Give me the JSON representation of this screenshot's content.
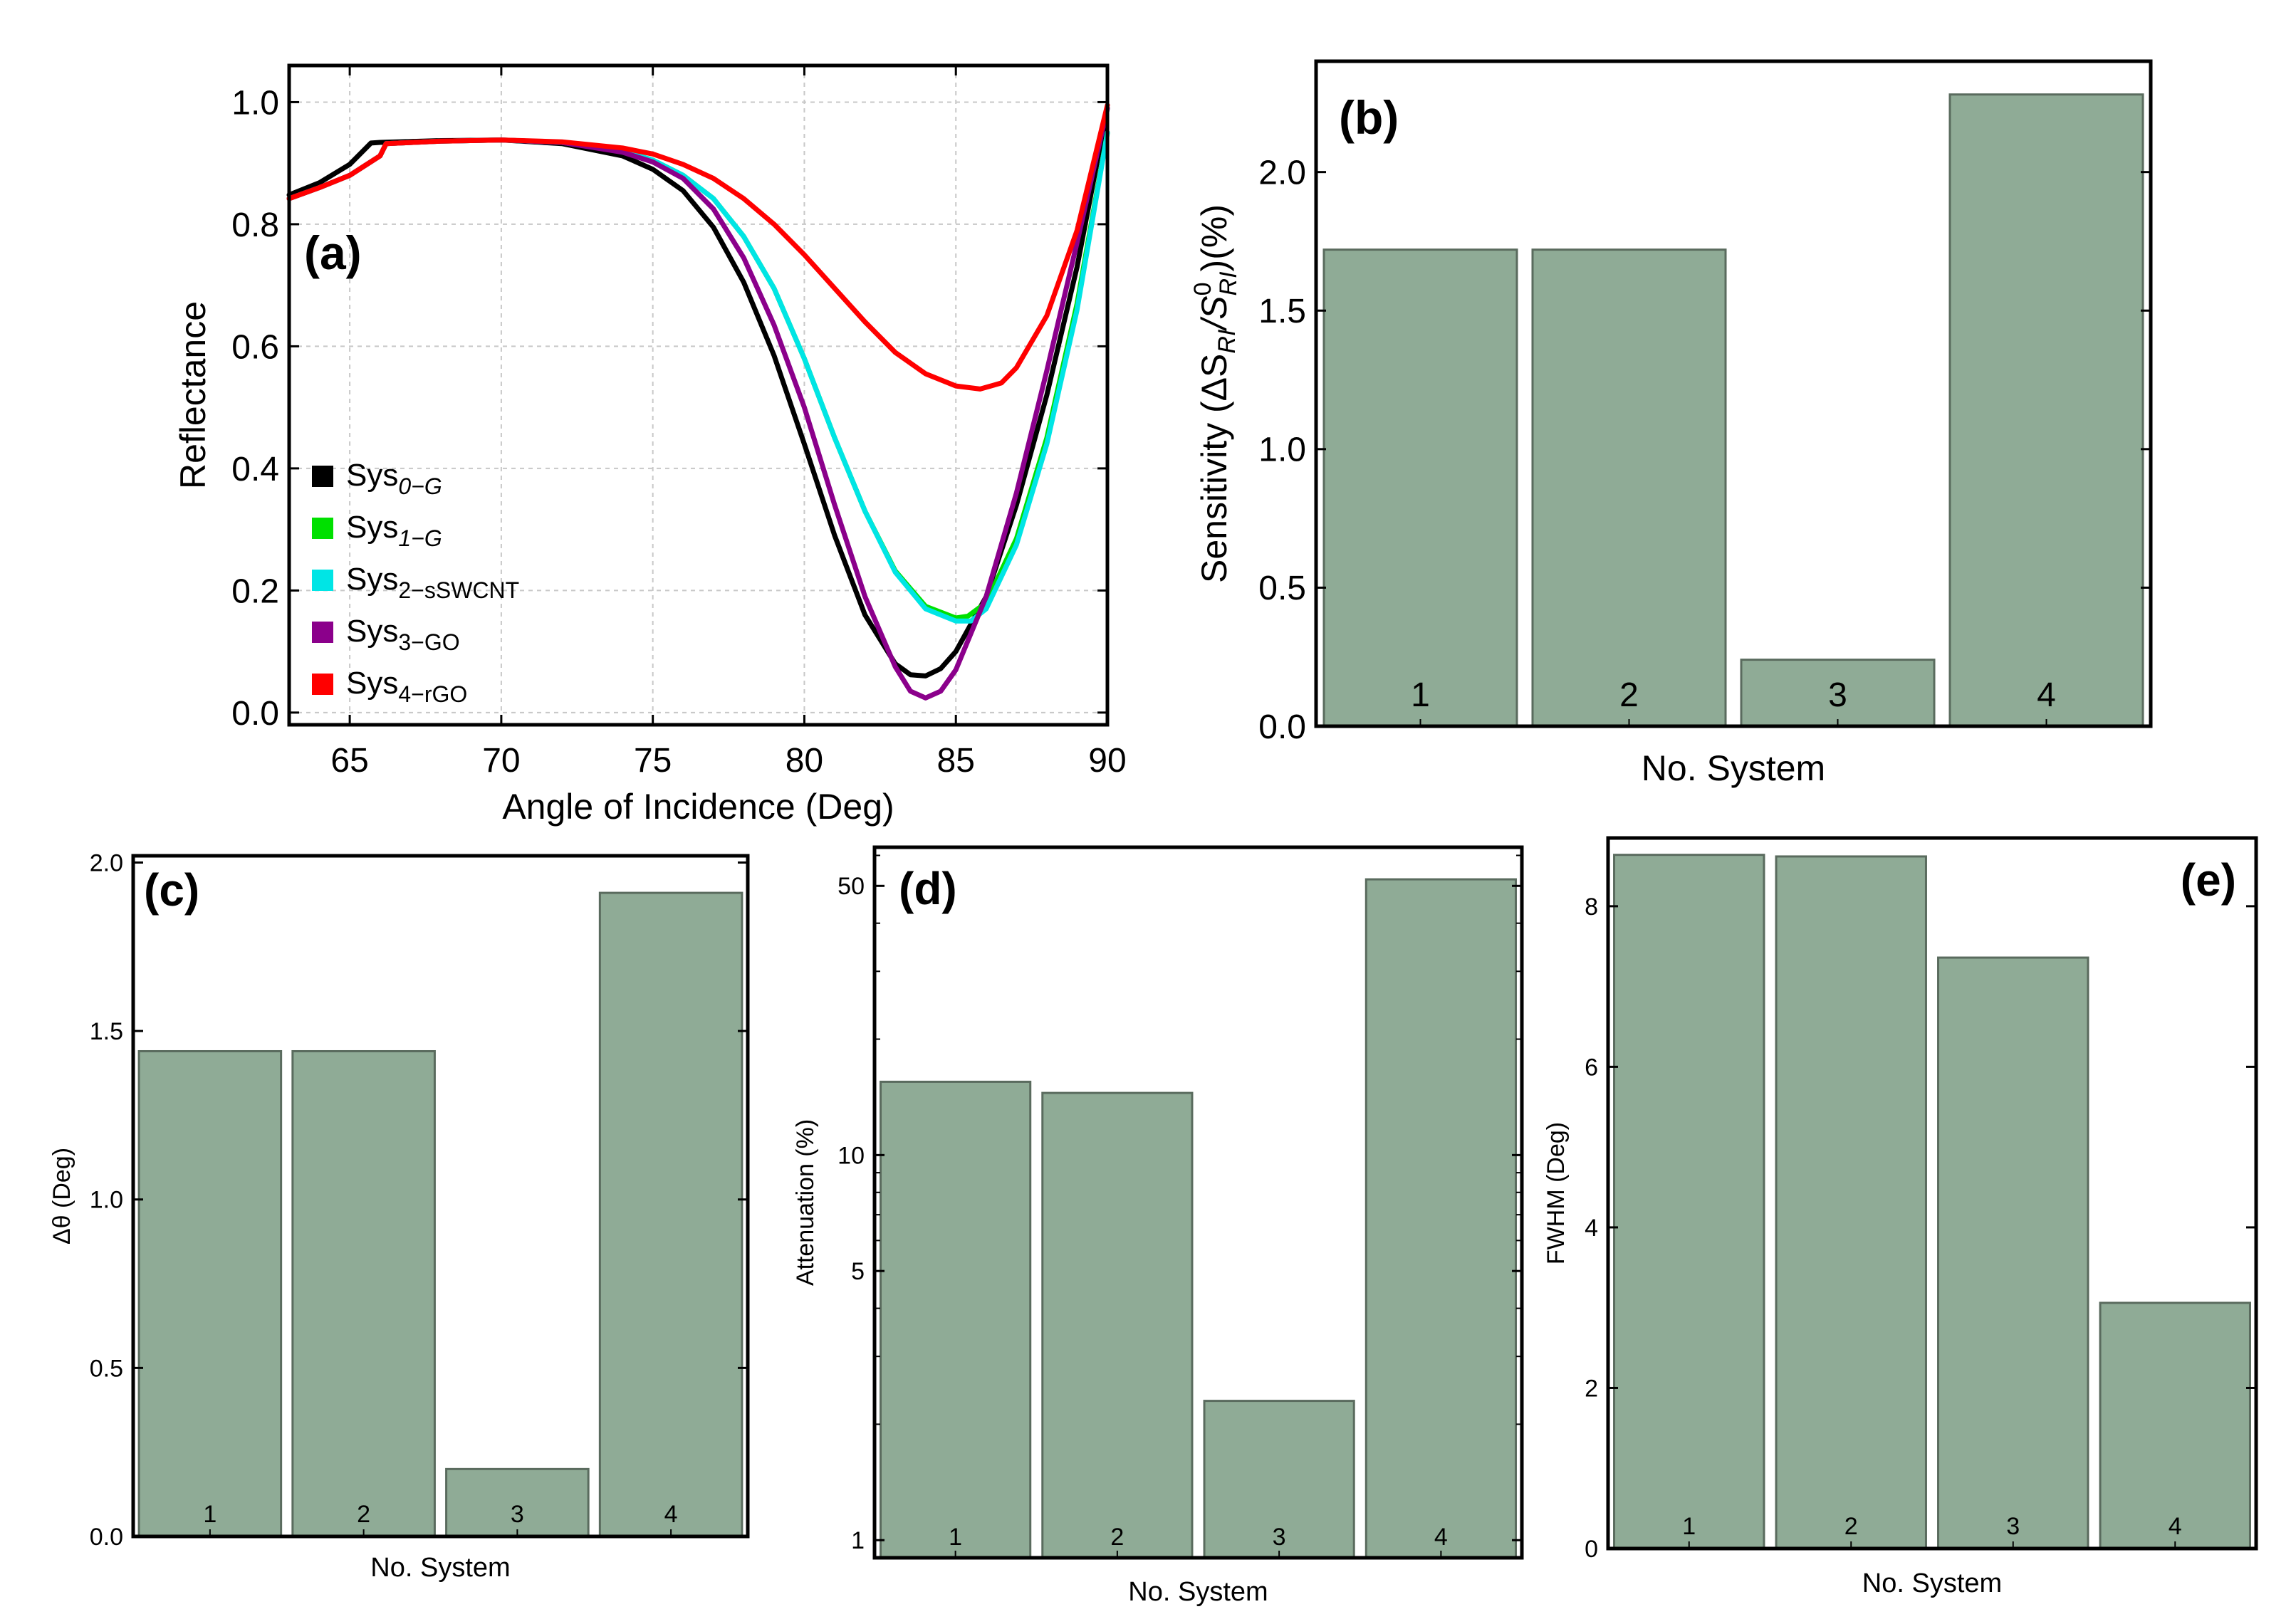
{
  "colors": {
    "bar_fill": "#8fab96",
    "bar_stroke": "#5a6b5e",
    "frame": "#000000",
    "grid": "#c8c8c8"
  },
  "chart_data": [
    {
      "id": "a",
      "type": "line",
      "panel_label": "(a)",
      "xlabel": "Angle of Incidence (Deg)",
      "ylabel": "Reflectance",
      "xlim": [
        63,
        90
      ],
      "ylim": [
        -0.02,
        1.06
      ],
      "xticks": [
        65,
        70,
        75,
        80,
        85,
        90
      ],
      "yticks": [
        0.0,
        0.2,
        0.4,
        0.6,
        0.8,
        1.0
      ],
      "ytick_labels": [
        "0.0",
        "0.2",
        "0.4",
        "0.6",
        "0.8",
        "1.0"
      ],
      "grid": true,
      "legend_position": "bottom-left",
      "series": [
        {
          "name": "Sys",
          "sub": "0−G",
          "sub_italic": true,
          "color": "#000000",
          "x": [
            63,
            64,
            65,
            65.7,
            66,
            68,
            70,
            72,
            74,
            75,
            76,
            77,
            78,
            79,
            80,
            81,
            82,
            83,
            83.5,
            84,
            84.5,
            85,
            86,
            87,
            88,
            89,
            90
          ],
          "y": [
            0.848,
            0.868,
            0.898,
            0.933,
            0.934,
            0.937,
            0.938,
            0.932,
            0.912,
            0.89,
            0.855,
            0.795,
            0.705,
            0.585,
            0.44,
            0.29,
            0.16,
            0.08,
            0.062,
            0.06,
            0.072,
            0.1,
            0.19,
            0.34,
            0.52,
            0.73,
            0.99
          ]
        },
        {
          "name": "Sys",
          "sub": "1−G",
          "sub_italic": true,
          "color": "#00e000",
          "x": [
            63,
            64,
            65,
            66,
            66.2,
            68,
            70,
            72,
            74,
            75,
            76,
            77,
            78,
            79,
            80,
            81,
            82,
            83,
            84,
            85,
            85.4,
            86,
            87,
            88,
            89,
            90
          ],
          "y": [
            0.842,
            0.86,
            0.88,
            0.912,
            0.932,
            0.936,
            0.938,
            0.934,
            0.92,
            0.905,
            0.88,
            0.842,
            0.78,
            0.695,
            0.58,
            0.45,
            0.33,
            0.232,
            0.174,
            0.155,
            0.158,
            0.18,
            0.285,
            0.45,
            0.67,
            0.95
          ]
        },
        {
          "name": "Sys",
          "sub": "2−sSWCNT",
          "sub_italic": false,
          "color": "#00e5e5",
          "x": [
            63,
            64,
            65,
            66,
            66.2,
            68,
            70,
            72,
            74,
            75,
            76,
            77,
            78,
            79,
            80,
            81,
            82,
            83,
            84,
            85,
            85.5,
            86,
            87,
            88,
            89,
            90
          ],
          "y": [
            0.842,
            0.86,
            0.88,
            0.912,
            0.932,
            0.936,
            0.938,
            0.934,
            0.92,
            0.905,
            0.88,
            0.842,
            0.78,
            0.695,
            0.58,
            0.45,
            0.33,
            0.23,
            0.17,
            0.15,
            0.15,
            0.17,
            0.275,
            0.44,
            0.66,
            0.95
          ]
        },
        {
          "name": "Sys",
          "sub": "3−GO",
          "sub_italic": false,
          "color": "#8b008b",
          "x": [
            63,
            64,
            65,
            66,
            66.2,
            68,
            70,
            72,
            74,
            75,
            76,
            77,
            78,
            79,
            80,
            81,
            82,
            83,
            83.5,
            84,
            84.5,
            85,
            86,
            87,
            88,
            89,
            90
          ],
          "y": [
            0.842,
            0.86,
            0.88,
            0.912,
            0.932,
            0.936,
            0.938,
            0.934,
            0.918,
            0.902,
            0.875,
            0.825,
            0.745,
            0.635,
            0.5,
            0.34,
            0.19,
            0.075,
            0.035,
            0.024,
            0.035,
            0.07,
            0.19,
            0.36,
            0.56,
            0.77,
            0.99
          ]
        },
        {
          "name": "Sys",
          "sub": "4−rGO",
          "sub_italic": false,
          "color": "#ff0000",
          "x": [
            63,
            64,
            65,
            66,
            66.2,
            68,
            70,
            72,
            74,
            75,
            76,
            77,
            78,
            79,
            80,
            81,
            82,
            83,
            84,
            85,
            85.8,
            86.5,
            87,
            88,
            89,
            90
          ],
          "y": [
            0.842,
            0.86,
            0.88,
            0.912,
            0.932,
            0.936,
            0.938,
            0.935,
            0.925,
            0.915,
            0.898,
            0.875,
            0.842,
            0.8,
            0.75,
            0.695,
            0.64,
            0.59,
            0.555,
            0.535,
            0.53,
            0.54,
            0.565,
            0.65,
            0.79,
            0.995
          ]
        }
      ]
    },
    {
      "id": "b",
      "type": "bar",
      "panel_label": "(b)",
      "xlabel": "No. System",
      "ylabel_main": "Sensitivity (ΔS",
      "ylabel_sub1": "RI",
      "ylabel_mid": "/S",
      "ylabel_sup": "0",
      "ylabel_sub2": "RI",
      "ylabel_tail": ")(%)",
      "categories": [
        "1",
        "2",
        "3",
        "4"
      ],
      "values": [
        1.72,
        1.72,
        0.24,
        2.28
      ],
      "ylim": [
        0,
        2.4
      ],
      "yticks": [
        0.0,
        0.5,
        1.0,
        1.5,
        2.0
      ],
      "ytick_labels": [
        "0.0",
        "0.5",
        "1.0",
        "1.5",
        "2.0"
      ],
      "log_scale": false
    },
    {
      "id": "c",
      "type": "bar",
      "panel_label": "(c)",
      "xlabel": "No. System",
      "ylabel": "Δθ (Deg)",
      "categories": [
        "1",
        "2",
        "3",
        "4"
      ],
      "values": [
        1.44,
        1.44,
        0.2,
        1.91
      ],
      "ylim": [
        0,
        2.02
      ],
      "yticks": [
        0.0,
        0.5,
        1.0,
        1.5,
        2.0
      ],
      "ytick_labels": [
        "0.0",
        "0.5",
        "1.0",
        "1.5",
        "2.0"
      ],
      "log_scale": false
    },
    {
      "id": "d",
      "type": "bar",
      "panel_label": "(d)",
      "xlabel": "No. System",
      "ylabel": "Attenuation (%)",
      "categories": [
        "1",
        "2",
        "3",
        "4"
      ],
      "values": [
        15.5,
        14.5,
        2.3,
        52
      ],
      "ylim": [
        0.9,
        63
      ],
      "yticks": [
        1,
        5,
        10,
        50
      ],
      "ytick_labels": [
        "1",
        "5",
        "10",
        "50"
      ],
      "log_scale": true
    },
    {
      "id": "e",
      "type": "bar",
      "panel_label": "(e)",
      "xlabel": "No. System",
      "ylabel": "FWHM (Deg)",
      "categories": [
        "1",
        "2",
        "3",
        "4"
      ],
      "values": [
        8.64,
        8.62,
        7.36,
        3.06
      ],
      "ylim": [
        0,
        8.85
      ],
      "yticks": [
        0,
        2,
        4,
        6,
        8
      ],
      "ytick_labels": [
        "0",
        "2",
        "4",
        "6",
        "8"
      ],
      "log_scale": false
    }
  ]
}
